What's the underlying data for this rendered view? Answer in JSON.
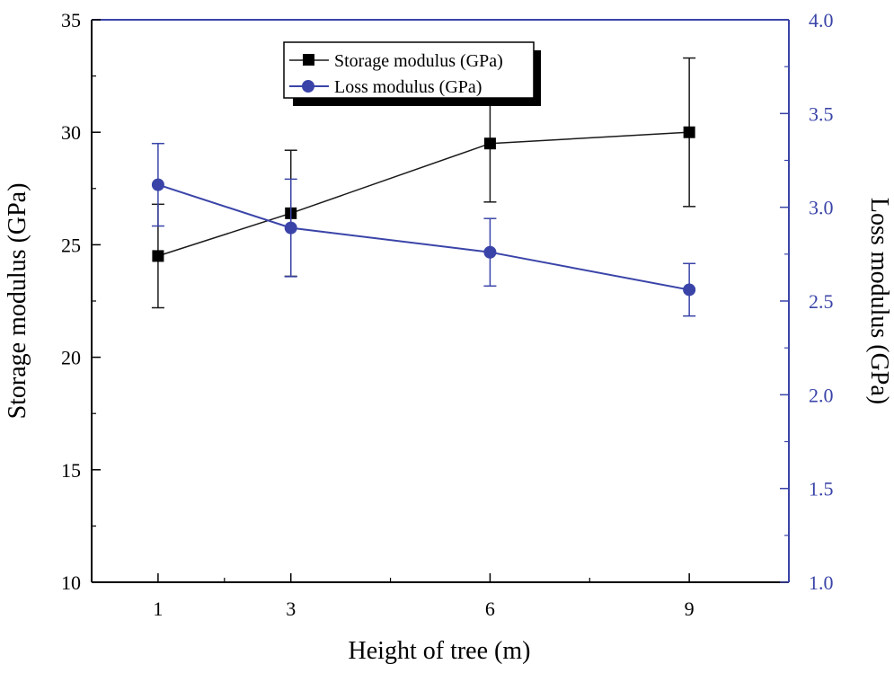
{
  "chart_data": {
    "type": "line",
    "title": "",
    "xlabel": "Height of tree (m)",
    "ylabel_left": "Storage modulus (GPa)",
    "ylabel_right": "Loss modulus (GPa)",
    "x_categories": [
      "1",
      "3",
      "6",
      "9"
    ],
    "x_values": [
      1,
      3,
      6,
      9
    ],
    "ylim_left": [
      10,
      35
    ],
    "ylim_right": [
      1.0,
      4.0
    ],
    "yticks_left": [
      "10",
      "15",
      "20",
      "25",
      "30",
      "35"
    ],
    "yticks_right": [
      "1.0",
      "1.5",
      "2.0",
      "2.5",
      "3.0",
      "3.5",
      "4.0"
    ],
    "grid": false,
    "legend_position": "top-center",
    "colors": {
      "storage": "#1a1a1a",
      "loss": "#3a44a8",
      "left_axis": "#000000",
      "right_axis": "#3a44a8"
    },
    "series": [
      {
        "name": "Storage modulus (GPa)",
        "axis": "left",
        "marker": "square",
        "values": [
          24.5,
          26.4,
          29.5,
          30.0
        ],
        "error": [
          2.3,
          2.8,
          2.6,
          3.3
        ]
      },
      {
        "name": "Loss modulus (GPa)",
        "axis": "right",
        "marker": "circle",
        "values": [
          3.12,
          2.89,
          2.76,
          2.56
        ],
        "error": [
          0.22,
          0.26,
          0.18,
          0.14
        ]
      }
    ]
  }
}
